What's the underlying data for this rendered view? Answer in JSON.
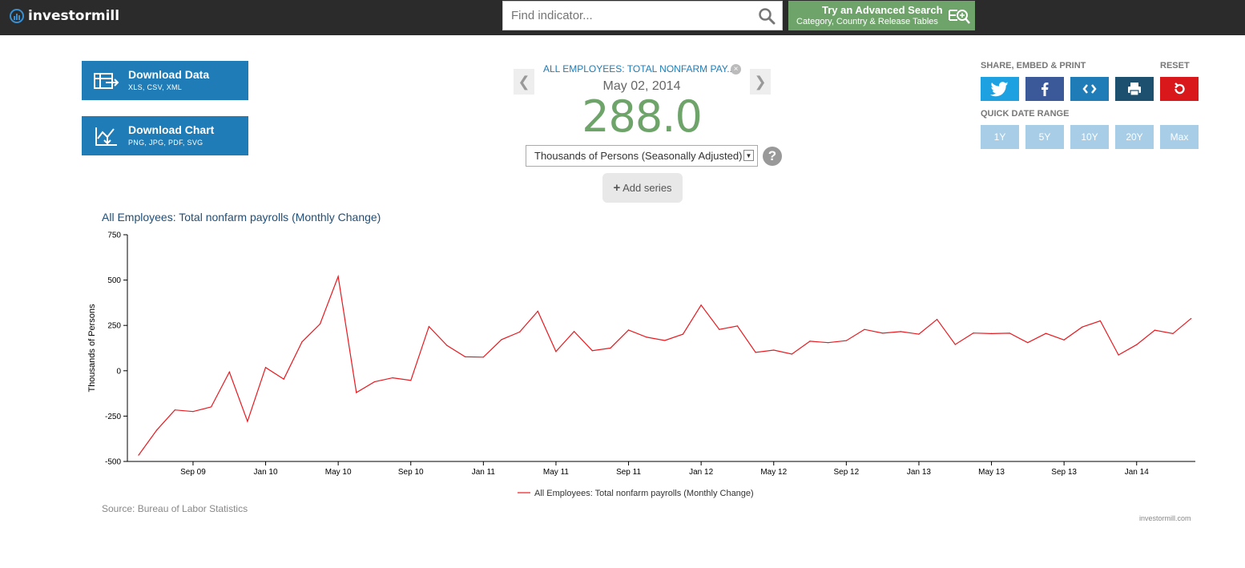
{
  "header": {
    "logo_text": "investormill",
    "search_placeholder": "Find indicator...",
    "advanced_title": "Try an Advanced Search",
    "advanced_sub": "Category, Country & Release Tables"
  },
  "downloads": {
    "data_title": "Download Data",
    "data_sub": "XLS, CSV, XML",
    "chart_title": "Download Chart",
    "chart_sub": "PNG, JPG, PDF, SVG"
  },
  "summary": {
    "series_name": "ALL EMPLOYEES: TOTAL NONFARM PAY...",
    "date": "May 02, 2014",
    "value": "288.0",
    "units": "Thousands of Persons (Seasonally Adjusted)",
    "add_series_label": "Add series",
    "help_label": "?",
    "prev_arrow": "❮",
    "next_arrow": "❯"
  },
  "share": {
    "label": "SHARE, EMBED & PRINT",
    "reset_label": "RESET",
    "colors": {
      "twitter": "#1da1e0",
      "facebook": "#3b5998",
      "embed": "#1f7cb6",
      "print": "#1d4f6e",
      "reset": "#d9181c"
    },
    "quick_label": "QUICK DATE RANGE",
    "ranges": [
      "1Y",
      "5Y",
      "10Y",
      "20Y",
      "Max"
    ]
  },
  "chart_data": {
    "type": "line",
    "title": "All Employees: Total nonfarm payrolls (Monthly Change)",
    "ylabel": "Thousands of Persons",
    "ylim": [
      -500,
      750
    ],
    "yticks": [
      750,
      500,
      250,
      0,
      -250,
      -500
    ],
    "xtick_labels": [
      "Sep 09",
      "Jan 10",
      "May 10",
      "Sep 10",
      "Jan 11",
      "May 11",
      "Sep 11",
      "Jan 12",
      "May 12",
      "Sep 12",
      "Jan 13",
      "May 13",
      "Sep 13",
      "Jan 14"
    ],
    "xtick_month_index": [
      3,
      7,
      11,
      15,
      19,
      23,
      27,
      31,
      35,
      39,
      43,
      47,
      51,
      55
    ],
    "start_month": "Jun 09",
    "line_color": "#e8191f",
    "series": [
      {
        "name": "All Employees: Total nonfarm payrolls (Monthly Change)",
        "values": [
          -465,
          -327,
          -216,
          -225,
          -199,
          -7,
          -279,
          18,
          -46,
          159,
          258,
          520,
          -120,
          -61,
          -39,
          -53,
          244,
          139,
          77,
          75,
          172,
          214,
          328,
          106,
          217,
          111,
          125,
          225,
          185,
          167,
          202,
          362,
          228,
          247,
          101,
          114,
          92,
          163,
          155,
          166,
          228,
          207,
          216,
          202,
          283,
          145,
          208,
          205,
          207,
          155,
          206,
          170,
          241,
          275,
          87,
          144,
          224,
          205,
          288
        ]
      }
    ],
    "legend": "bottom-center",
    "source": "Source: Bureau of Labor Statistics",
    "credit": "investormill.com"
  }
}
